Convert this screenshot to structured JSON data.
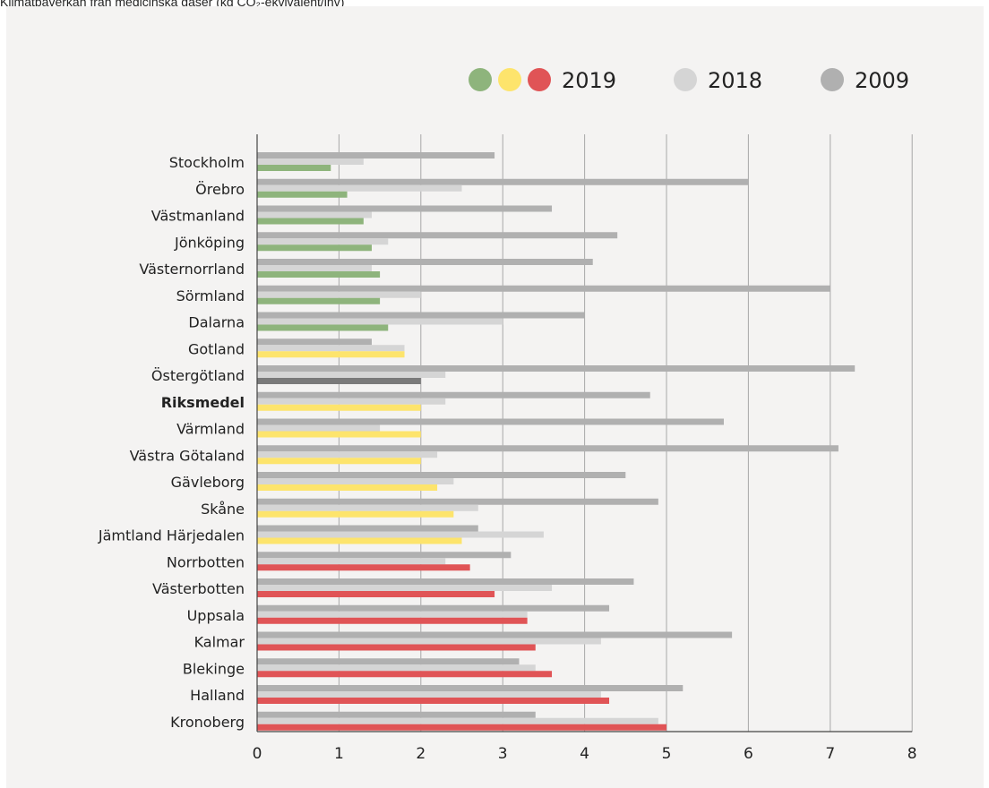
{
  "caption": "Klimatpåverkan från medicinska gaser (kg CO₂-ekvivalent/inv)",
  "colors": {
    "panel_bg": "#f4f3f2",
    "green": "#8eb47c",
    "yellow": "#fde46c",
    "red": "#e05456",
    "dark_gray": "#7a7a7a",
    "series_2018": "#d5d5d5",
    "series_2009": "#b0b0b0",
    "gridline": "#a8a8a8",
    "axis": "#444444"
  },
  "chart_data": {
    "type": "bar",
    "orientation": "horizontal",
    "title": "",
    "xlabel": "",
    "ylabel": "",
    "xlim": [
      0,
      8
    ],
    "x_ticks": [
      "0",
      "1",
      "2",
      "3",
      "4",
      "5",
      "6",
      "7",
      "8"
    ],
    "grid": "vertical gridlines",
    "legend": {
      "placement": "top-right",
      "entries": [
        {
          "label": "2019",
          "swatches": [
            "green",
            "yellow",
            "red"
          ]
        },
        {
          "label": "2018",
          "swatches": [
            "series_2018"
          ]
        },
        {
          "label": "2009",
          "swatches": [
            "series_2009"
          ]
        }
      ]
    },
    "categories": [
      "Stockholm",
      "Örebro",
      "Västmanland",
      "Jönköping",
      "Västernorrland",
      "Sörmland",
      "Dalarna",
      "Gotland",
      "Östergötland",
      "Riksmedel",
      "Värmland",
      "Västra Götaland",
      "Gävleborg",
      "Skåne",
      "Jämtland Härjedalen",
      "Norrbotten",
      "Västerbotten",
      "Uppsala",
      "Kalmar",
      "Blekinge",
      "Halland",
      "Kronoberg"
    ],
    "bold_categories": [
      "Riksmedel"
    ],
    "series": [
      {
        "name": "2009",
        "values": [
          2.9,
          6.0,
          3.6,
          4.4,
          4.1,
          7.0,
          4.0,
          1.4,
          7.3,
          4.8,
          5.7,
          7.1,
          4.5,
          4.9,
          2.7,
          3.1,
          4.6,
          4.3,
          5.8,
          3.2,
          5.2,
          3.4
        ]
      },
      {
        "name": "2018",
        "values": [
          1.3,
          2.5,
          1.4,
          1.6,
          1.4,
          2.0,
          3.0,
          1.8,
          2.3,
          2.3,
          1.5,
          2.2,
          2.4,
          2.7,
          3.5,
          2.3,
          3.6,
          3.3,
          4.2,
          3.4,
          4.2,
          4.9
        ]
      },
      {
        "name": "2019",
        "values": [
          0.9,
          1.1,
          1.3,
          1.4,
          1.5,
          1.5,
          1.6,
          1.8,
          2.0,
          2.0,
          2.0,
          2.0,
          2.2,
          2.4,
          2.5,
          2.6,
          2.9,
          3.3,
          3.4,
          3.6,
          4.3,
          5.0
        ],
        "colors": [
          "green",
          "green",
          "green",
          "green",
          "green",
          "green",
          "green",
          "yellow",
          "dark_gray",
          "yellow",
          "yellow",
          "yellow",
          "yellow",
          "yellow",
          "yellow",
          "red",
          "red",
          "red",
          "red",
          "red",
          "red",
          "red"
        ]
      }
    ]
  }
}
